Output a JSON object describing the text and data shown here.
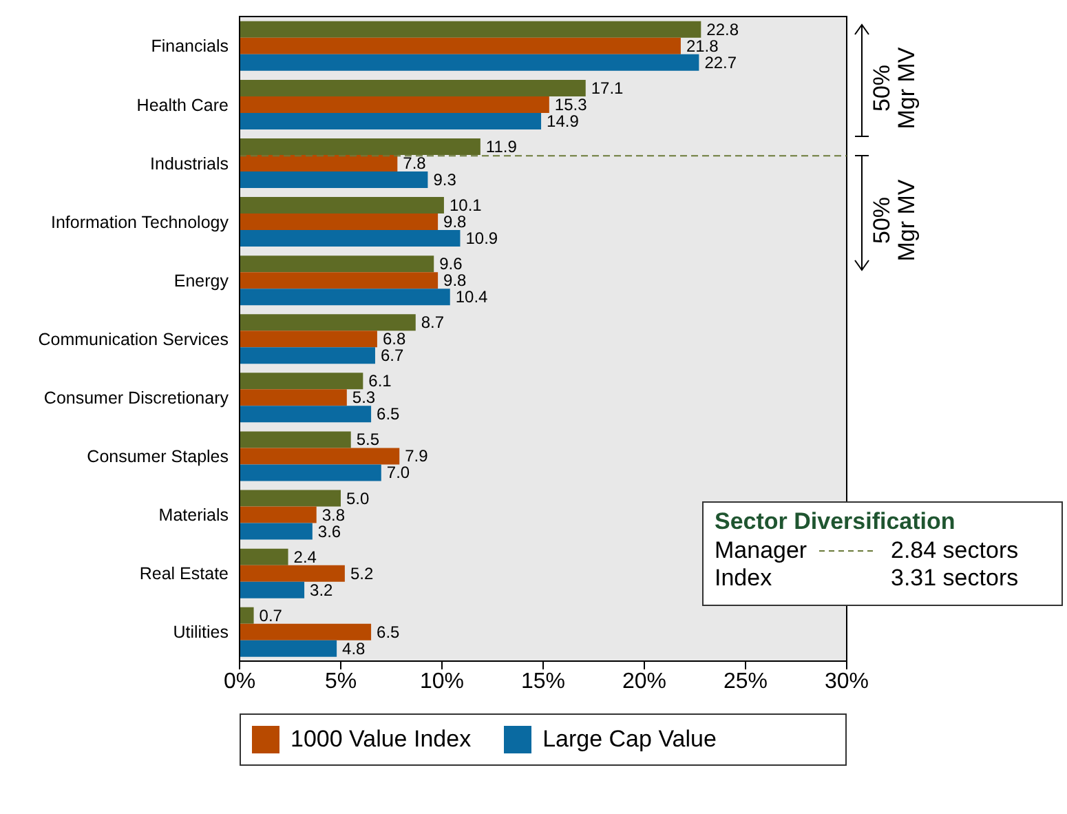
{
  "chart_data": {
    "type": "bar",
    "orientation": "horizontal",
    "categories": [
      "Financials",
      "Health Care",
      "Industrials",
      "Information Technology",
      "Energy",
      "Communication Services",
      "Consumer Discretionary",
      "Consumer Staples",
      "Materials",
      "Real Estate",
      "Utilities"
    ],
    "series": [
      {
        "color": "#5e6b25",
        "values": [
          22.8,
          17.1,
          11.9,
          10.1,
          9.6,
          8.7,
          6.1,
          5.5,
          5.0,
          2.4,
          0.7
        ],
        "value_labels": [
          "22.8",
          "17.1",
          "11.9",
          "10.1",
          "9.6",
          "8.7",
          "6.1",
          "5.5",
          "5.0",
          "2.4",
          "0.7"
        ]
      },
      {
        "name": "1000 Value Index",
        "color": "#b84a00",
        "values": [
          21.8,
          15.3,
          7.8,
          9.8,
          9.8,
          6.8,
          5.3,
          7.9,
          3.8,
          5.2,
          6.5
        ],
        "value_labels": [
          "21.8",
          "15.3",
          "7.8",
          "9.8",
          "9.8",
          "6.8",
          "5.3",
          "7.9",
          "3.8",
          "5.2",
          "6.5"
        ]
      },
      {
        "name": "Large Cap Value",
        "color": "#0a6aa1",
        "values": [
          22.7,
          14.9,
          9.3,
          10.9,
          10.4,
          6.7,
          6.5,
          7.0,
          3.6,
          3.2,
          4.8
        ],
        "value_labels": [
          "22.7",
          "14.9",
          "9.3",
          "10.9",
          "10.4",
          "6.7",
          "6.5",
          "7.0",
          "3.6",
          "3.2",
          "4.8"
        ]
      }
    ],
    "xlim": [
      0,
      30
    ],
    "xticks": [
      {
        "value": 0,
        "label": "0%"
      },
      {
        "value": 5,
        "label": "5%"
      },
      {
        "value": 10,
        "label": "10%"
      },
      {
        "value": 15,
        "label": "15%"
      },
      {
        "value": 20,
        "label": "20%"
      },
      {
        "value": 25,
        "label": "25%"
      },
      {
        "value": 30,
        "label": "30%"
      }
    ],
    "legend": "bottom",
    "ref_lines": [
      {
        "axis": "y",
        "value": "Industrials",
        "color": "#6b7a3a",
        "line_style": "dashed"
      }
    ],
    "annotations": [
      "50% Mgr MV",
      "50% Mgr MV",
      "Sector Diversification",
      "Manager",
      "2.84 sectors",
      "Index",
      "3.31 sectors"
    ]
  }
}
